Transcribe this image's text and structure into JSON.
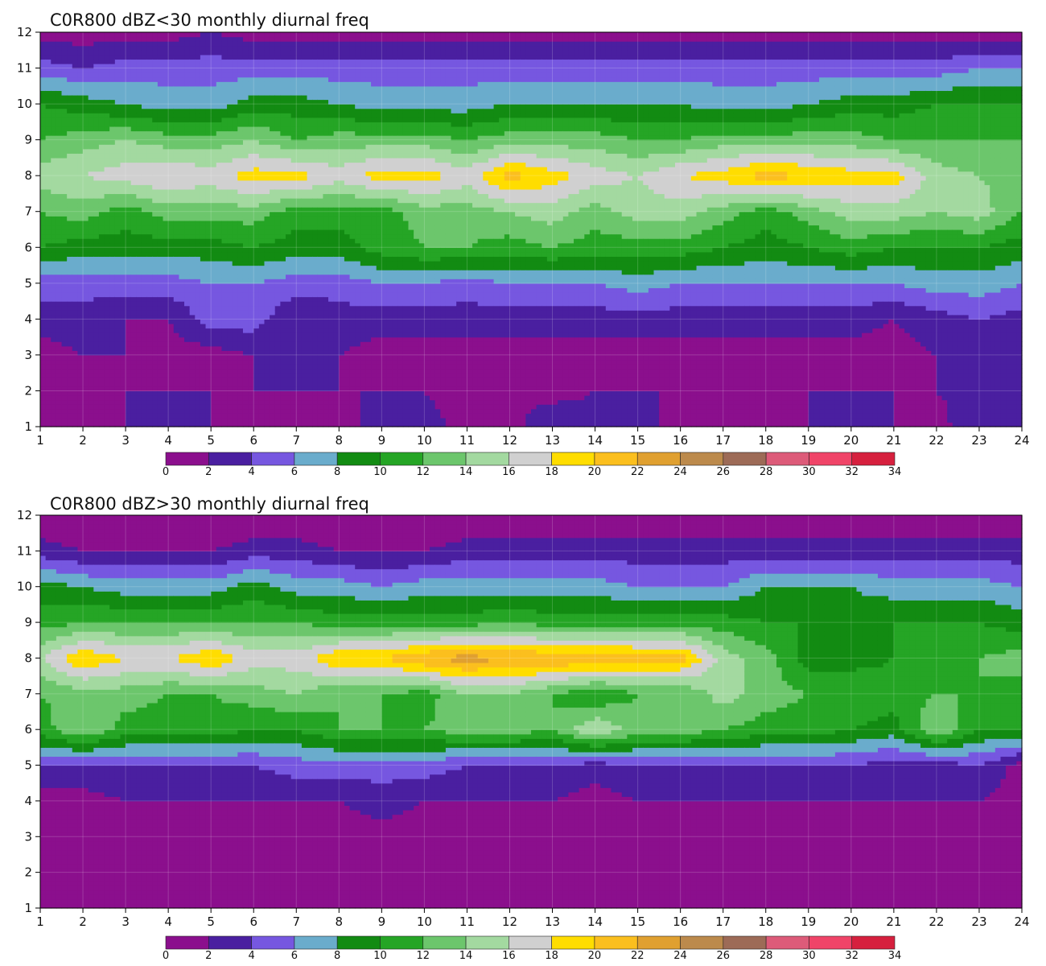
{
  "chart_data": [
    {
      "type": "contour",
      "title": "C0R800 dBZ<30 monthly diurnal freq",
      "xlabel": "",
      "ylabel": "",
      "xlim": [
        1,
        24
      ],
      "ylim": [
        1,
        12
      ],
      "x_ticks": [
        1,
        2,
        3,
        4,
        5,
        6,
        7,
        8,
        9,
        10,
        11,
        12,
        13,
        14,
        15,
        16,
        17,
        18,
        19,
        20,
        21,
        22,
        23,
        24
      ],
      "y_ticks": [
        1,
        2,
        3,
        4,
        5,
        6,
        7,
        8,
        9,
        10,
        11,
        12
      ],
      "grid": true,
      "levels": [
        0,
        2,
        4,
        6,
        8,
        10,
        12,
        14,
        16,
        18,
        20,
        22,
        24,
        26,
        28,
        30,
        32,
        34
      ],
      "colors": [
        "#8b0f8d",
        "#4a1fa0",
        "#7657e0",
        "#6aaccc",
        "#128b12",
        "#25a525",
        "#6cc66c",
        "#a3d9a0",
        "#d0d0d0",
        "#ffdd00",
        "#fbbf1e",
        "#e0a030",
        "#bc8a4c",
        "#9d6b57",
        "#dd5b79",
        "#f04468",
        "#d6203e"
      ],
      "x": [
        1,
        2,
        3,
        4,
        5,
        6,
        7,
        8,
        9,
        10,
        11,
        12,
        13,
        14,
        15,
        16,
        17,
        18,
        19,
        20,
        21,
        22,
        23,
        24
      ],
      "y": [
        1,
        2,
        3,
        4,
        5,
        6,
        7,
        8,
        9,
        10,
        11,
        12
      ],
      "z": [
        [
          2,
          1,
          2,
          2,
          2,
          1,
          2,
          1,
          3,
          3,
          1,
          1,
          4,
          3,
          3,
          1,
          2,
          1,
          2,
          2,
          2,
          1,
          4,
          2
        ],
        [
          1,
          1,
          2,
          2,
          2,
          2,
          2,
          2,
          2,
          2,
          1,
          2,
          1,
          2,
          2,
          2,
          1,
          2,
          2,
          2,
          2,
          2,
          3,
          2
        ],
        [
          1,
          2,
          2,
          1,
          1,
          2,
          2,
          2,
          1,
          1,
          1,
          1,
          1,
          1,
          1,
          1,
          1,
          1,
          1,
          1,
          1,
          2,
          2,
          2
        ],
        [
          3,
          3,
          2,
          2,
          5,
          5,
          2,
          3,
          3,
          3,
          3,
          3,
          3,
          3,
          3,
          3,
          3,
          3,
          3,
          3,
          2,
          3,
          4,
          3
        ],
        [
          5,
          5,
          5,
          5,
          6,
          6,
          5,
          5,
          6,
          6,
          5,
          6,
          6,
          6,
          7,
          6,
          6,
          6,
          6,
          6,
          6,
          7,
          7,
          6
        ],
        [
          10,
          9,
          9,
          9,
          9,
          10,
          9,
          9,
          11,
          12,
          12,
          11,
          12,
          11,
          11,
          11,
          10,
          9,
          10,
          11,
          10,
          10,
          10,
          9
        ],
        [
          12,
          13,
          11,
          13,
          13,
          13,
          11,
          11,
          11,
          13,
          13,
          14,
          15,
          13,
          15,
          15,
          13,
          11,
          13,
          15,
          15,
          14,
          15,
          12
        ],
        [
          15,
          16,
          17,
          18,
          17,
          19,
          19,
          17,
          19,
          19,
          17,
          21,
          19,
          17,
          16,
          18,
          19,
          21,
          20,
          19,
          19,
          15,
          14,
          13
        ],
        [
          12,
          13,
          14,
          13,
          13,
          14,
          12,
          13,
          13,
          13,
          12,
          13,
          13,
          13,
          12,
          12,
          13,
          13,
          13,
          13,
          12,
          12,
          12,
          12
        ],
        [
          10,
          9,
          8,
          7,
          7,
          9,
          9,
          8,
          7,
          7,
          7,
          8,
          8,
          8,
          8,
          8,
          7,
          7,
          8,
          9,
          9,
          10,
          10,
          10
        ],
        [
          5,
          4,
          5,
          5,
          5,
          5,
          5,
          5,
          5,
          5,
          5,
          5,
          5,
          5,
          5,
          5,
          5,
          5,
          5,
          5,
          5,
          5,
          6,
          6
        ],
        [
          1,
          1,
          1,
          1,
          2,
          1,
          1,
          1,
          1,
          1,
          1,
          1,
          1,
          1,
          1,
          1,
          1,
          1,
          1,
          1,
          1,
          1,
          1,
          1
        ]
      ]
    },
    {
      "type": "contour",
      "title": "C0R800 dBZ>30 monthly diurnal freq",
      "xlabel": "",
      "ylabel": "",
      "xlim": [
        1,
        24
      ],
      "ylim": [
        1,
        12
      ],
      "x_ticks": [
        1,
        2,
        3,
        4,
        5,
        6,
        7,
        8,
        9,
        10,
        11,
        12,
        13,
        14,
        15,
        16,
        17,
        18,
        19,
        20,
        21,
        22,
        23,
        24
      ],
      "y_ticks": [
        1,
        2,
        3,
        4,
        5,
        6,
        7,
        8,
        9,
        10,
        11,
        12
      ],
      "grid": true,
      "levels": [
        0,
        2,
        4,
        6,
        8,
        10,
        12,
        14,
        16,
        18,
        20,
        22,
        24,
        26,
        28,
        30,
        32,
        34
      ],
      "colors": [
        "#8b0f8d",
        "#4a1fa0",
        "#7657e0",
        "#6aaccc",
        "#128b12",
        "#25a525",
        "#6cc66c",
        "#a3d9a0",
        "#d0d0d0",
        "#ffdd00",
        "#fbbf1e",
        "#e0a030",
        "#bc8a4c",
        "#9d6b57",
        "#dd5b79",
        "#f04468",
        "#d6203e"
      ],
      "x": [
        1,
        2,
        3,
        4,
        5,
        6,
        7,
        8,
        9,
        10,
        11,
        12,
        13,
        14,
        15,
        16,
        17,
        18,
        19,
        20,
        21,
        22,
        23,
        24
      ],
      "y": [
        1,
        2,
        3,
        4,
        5,
        6,
        7,
        8,
        9,
        10,
        11,
        12
      ],
      "z": [
        [
          1,
          1,
          1,
          1,
          1,
          1,
          1,
          1,
          1,
          1,
          2,
          1,
          1,
          1,
          1,
          1,
          1,
          1,
          1,
          1,
          1,
          1,
          1,
          1
        ],
        [
          1,
          1,
          1,
          1,
          1,
          1,
          1,
          1,
          1,
          1,
          1,
          1,
          1,
          1,
          1,
          1,
          1,
          1,
          1,
          1,
          1,
          1,
          1,
          1
        ],
        [
          1,
          1,
          1,
          1,
          1,
          1,
          1,
          1,
          1,
          1,
          1,
          1,
          1,
          1,
          1,
          1,
          1,
          1,
          1,
          1,
          1,
          1,
          1,
          1
        ],
        [
          1,
          1,
          2,
          2,
          2,
          2,
          2,
          2,
          3,
          2,
          2,
          2,
          2,
          1,
          2,
          2,
          2,
          2,
          2,
          2,
          2,
          2,
          2,
          1
        ],
        [
          4,
          4,
          4,
          4,
          4,
          4,
          5,
          5,
          5,
          5,
          4,
          4,
          4,
          3,
          4,
          4,
          4,
          4,
          4,
          4,
          3,
          3,
          4,
          1
        ],
        [
          11,
          14,
          11,
          11,
          11,
          10,
          10,
          12,
          12,
          12,
          13,
          13,
          12,
          16,
          13,
          13,
          12,
          11,
          11,
          10,
          9,
          14,
          10,
          10
        ],
        [
          12,
          13,
          13,
          12,
          12,
          13,
          14,
          12,
          12,
          11,
          14,
          14,
          12,
          10,
          12,
          12,
          15,
          13,
          12,
          12,
          11,
          12,
          12,
          11
        ],
        [
          16,
          20,
          18,
          18,
          20,
          17,
          17,
          20,
          20,
          22,
          23,
          22,
          22,
          22,
          21,
          21,
          15,
          13,
          9,
          9,
          10,
          10,
          12,
          13
        ],
        [
          11,
          12,
          12,
          12,
          12,
          12,
          12,
          11,
          11,
          11,
          11,
          12,
          11,
          11,
          11,
          11,
          11,
          10,
          10,
          9,
          10,
          10,
          10,
          9
        ],
        [
          9,
          8,
          7,
          7,
          7,
          9,
          7,
          7,
          6,
          7,
          7,
          7,
          7,
          7,
          6,
          6,
          6,
          8,
          8,
          8,
          7,
          7,
          7,
          6
        ],
        [
          3,
          2,
          2,
          2,
          2,
          3,
          3,
          2,
          2,
          2,
          3,
          3,
          3,
          3,
          3,
          3,
          3,
          3,
          3,
          3,
          3,
          3,
          3,
          3
        ],
        [
          0,
          0,
          0,
          0,
          0,
          0,
          0,
          0,
          0,
          0,
          0,
          0,
          0,
          0,
          0,
          0,
          0,
          0,
          0,
          0,
          0,
          0,
          0,
          0
        ]
      ]
    }
  ]
}
